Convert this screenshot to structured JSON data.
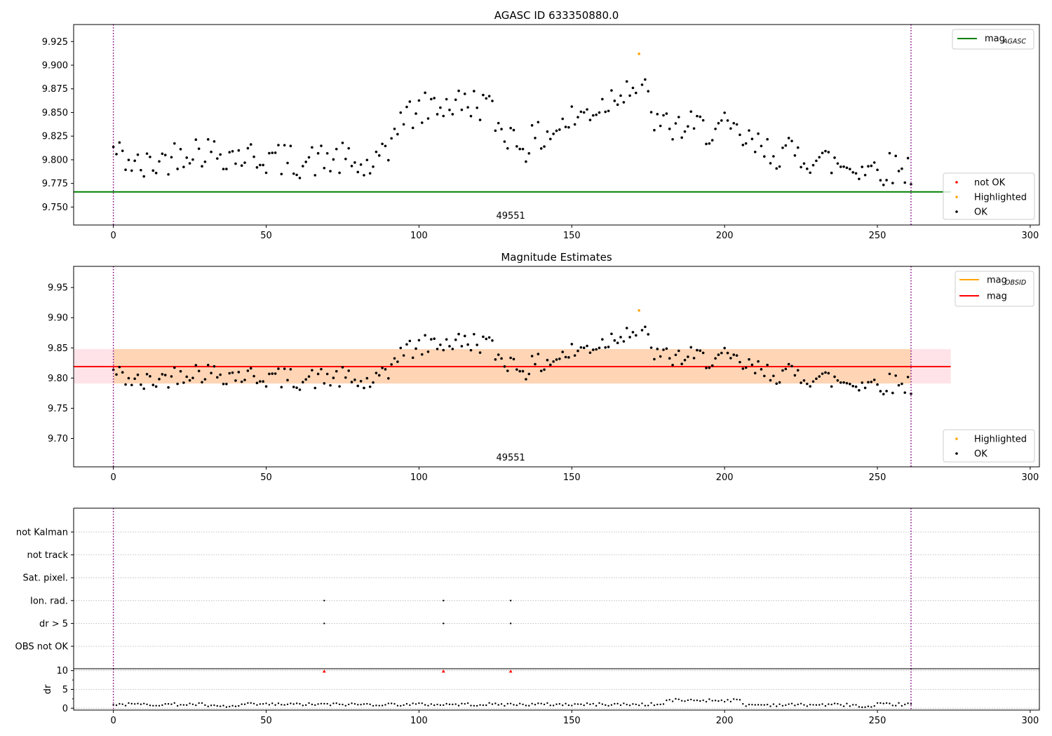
{
  "chart_data": [
    {
      "type": "scatter",
      "title": "AGASC ID 633350880.0",
      "annotation": "49551",
      "xlim": [
        -13,
        303
      ],
      "ylim": [
        9.731,
        9.943
      ],
      "x_ticks": [
        0,
        50,
        100,
        150,
        200,
        250,
        300
      ],
      "y_ticks": [
        9.75,
        9.775,
        9.8,
        9.825,
        9.85,
        9.875,
        9.9,
        9.925
      ],
      "y_tick_labels": [
        "9.750",
        "9.775",
        "9.800",
        "9.825",
        "9.850",
        "9.875",
        "9.900",
        "9.925"
      ],
      "vlines": [
        0,
        261
      ],
      "hline": {
        "name": "mag_AGASC",
        "label_main": "mag",
        "label_sub": "AGASC",
        "value": 9.766,
        "x_range": [
          -13,
          274
        ],
        "color": "#008000"
      },
      "legend_top": [
        {
          "label_main": "mag",
          "label_sub": "AGASC",
          "color": "#008000"
        }
      ],
      "legend_bottom": [
        {
          "label": "not OK",
          "color": "#ff0000"
        },
        {
          "label": "Highlighted",
          "color": "#ffa500"
        },
        {
          "label": "OK",
          "color": "#000000"
        }
      ],
      "highlighted": [
        {
          "x": 172,
          "y": 9.912
        }
      ],
      "grid": false
    },
    {
      "type": "scatter",
      "title": "Magnitude Estimates",
      "annotation": "49551",
      "xlim": [
        -13,
        303
      ],
      "ylim": [
        9.653,
        9.985
      ],
      "x_ticks": [
        0,
        50,
        100,
        150,
        200,
        250,
        300
      ],
      "y_ticks": [
        9.7,
        9.75,
        9.8,
        9.85,
        9.9,
        9.95
      ],
      "y_tick_labels": [
        "9.70",
        "9.75",
        "9.80",
        "9.85",
        "9.90",
        "9.95"
      ],
      "vlines": [
        0,
        261
      ],
      "mag": {
        "value": 9.819,
        "band": [
          9.791,
          9.848
        ],
        "x_range": [
          -13,
          274
        ],
        "band_color": "#ffc0cb",
        "color": "#ff0000"
      },
      "mag_obsid": {
        "value": 9.819,
        "band": [
          9.791,
          9.848
        ],
        "x_range": [
          0,
          261
        ],
        "band_color": "#ffa500"
      },
      "legend_top": [
        {
          "label_main": "mag",
          "label_sub": "OBSID",
          "color": "#ffa500"
        },
        {
          "label_main": "mag",
          "label_sub": "",
          "color": "#ff0000"
        }
      ],
      "legend_bottom": [
        {
          "label": "Highlighted",
          "color": "#ffa500"
        },
        {
          "label": "OK",
          "color": "#000000"
        }
      ],
      "highlighted": [
        {
          "x": 172,
          "y": 9.912
        }
      ],
      "grid": false
    },
    {
      "type": "scatter",
      "title": "",
      "xlim": [
        -13,
        303
      ],
      "vlines": [
        0,
        261
      ],
      "flag_rows": [
        "not Kalman",
        "not track",
        "Sat. pixel.",
        "Ion. rad.",
        "dr > 5",
        "OBS not OK"
      ],
      "flag_points": [
        {
          "row": "Ion. rad.",
          "x": [
            69,
            108,
            130
          ]
        },
        {
          "row": "dr > 5",
          "x": [
            69,
            108,
            130
          ]
        }
      ],
      "grid": true
    },
    {
      "type": "scatter",
      "title": "",
      "ylabel": "dr",
      "xlim": [
        -13,
        303
      ],
      "ylim": [
        -0.5,
        10.5
      ],
      "x_ticks": [
        0,
        50,
        100,
        150,
        200,
        250,
        300
      ],
      "y_ticks": [
        0,
        5,
        10
      ],
      "y_tick_labels": [
        "0",
        "5",
        "10"
      ],
      "vlines": [
        0,
        261
      ],
      "outliers": {
        "value": 9.8,
        "x": [
          69,
          108,
          130
        ],
        "color": "#ff0000"
      },
      "grid": true
    }
  ]
}
